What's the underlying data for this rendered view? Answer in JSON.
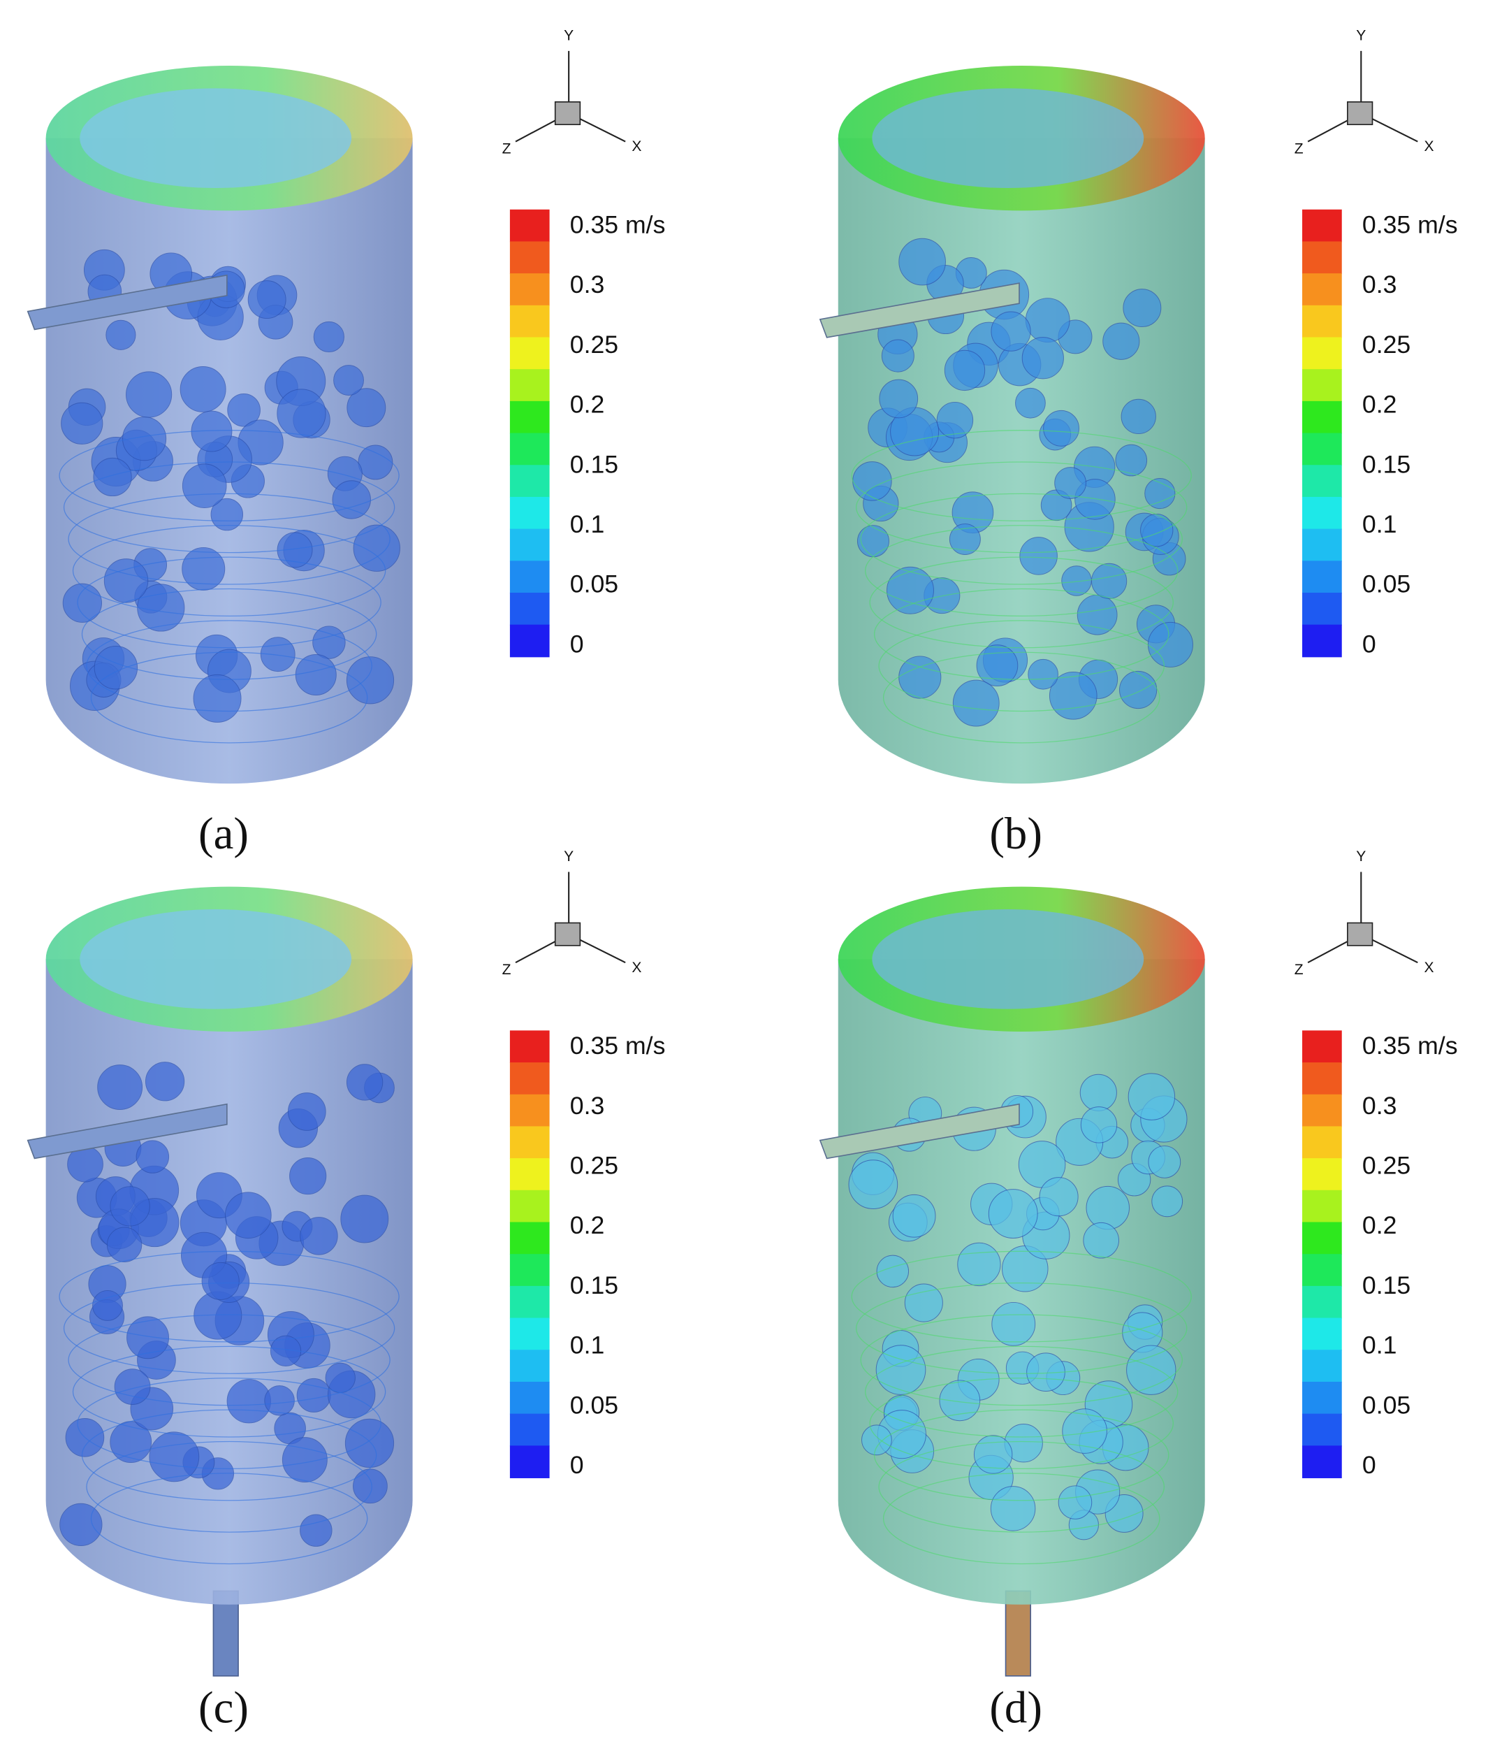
{
  "panels": [
    {
      "caption": "(a)",
      "axes": {
        "y": "Y",
        "z": "Z",
        "x": "X"
      },
      "colorbar": [
        "0.35 m/s",
        "0.3",
        "0.25",
        "0.2",
        "0.15",
        "0.1",
        "0.05",
        "0"
      ]
    },
    {
      "caption": "(b)",
      "axes": {
        "y": "Y",
        "z": "Z",
        "x": "X"
      },
      "colorbar": [
        "0.35 m/s",
        "0.3",
        "0.25",
        "0.2",
        "0.15",
        "0.1",
        "0.05",
        "0"
      ]
    },
    {
      "caption": "(c)",
      "axes": {
        "y": "Y",
        "z": "Z",
        "x": "X"
      },
      "colorbar": [
        "0.35 m/s",
        "0.3",
        "0.25",
        "0.2",
        "0.15",
        "0.1",
        "0.05",
        "0"
      ]
    },
    {
      "caption": "(d)",
      "axes": {
        "y": "Y",
        "z": "Z",
        "x": "X"
      },
      "colorbar": [
        "0.35 m/s",
        "0.3",
        "0.25",
        "0.2",
        "0.15",
        "0.1",
        "0.05",
        "0"
      ]
    }
  ]
}
